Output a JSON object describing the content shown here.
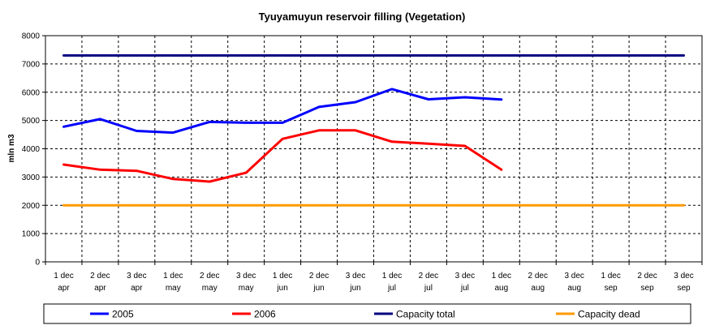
{
  "chart_data": {
    "type": "line",
    "title": "Tyuyamuyun reservoir filling (Vegetation)",
    "xlabel": "",
    "ylabel": "mln m3",
    "ylim": [
      0,
      8000
    ],
    "yticks": [
      0,
      1000,
      2000,
      3000,
      4000,
      5000,
      6000,
      7000,
      8000
    ],
    "grid": true,
    "legend_position": "bottom",
    "categories": [
      [
        "1 dec",
        "apr"
      ],
      [
        "2 dec",
        "apr"
      ],
      [
        "3 dec",
        "apr"
      ],
      [
        "1 dec",
        "may"
      ],
      [
        "2 dec",
        "may"
      ],
      [
        "3 dec",
        "may"
      ],
      [
        "1 dec",
        "jun"
      ],
      [
        "2 dec",
        "jun"
      ],
      [
        "3 dec",
        "jun"
      ],
      [
        "1 dec",
        "jul"
      ],
      [
        "2 dec",
        "jul"
      ],
      [
        "3 dec",
        "jul"
      ],
      [
        "1 dec",
        "aug"
      ],
      [
        "2 dec",
        "aug"
      ],
      [
        "3 dec",
        "aug"
      ],
      [
        "1 dec",
        "sep"
      ],
      [
        "2 dec",
        "sep"
      ],
      [
        "3 dec",
        "sep"
      ]
    ],
    "series": [
      {
        "name": "2005",
        "color": "#0000ff",
        "values": [
          4780,
          5050,
          4630,
          4570,
          4950,
          4920,
          4920,
          5480,
          5650,
          6110,
          5750,
          5820,
          5740,
          null,
          null,
          null,
          null,
          null
        ]
      },
      {
        "name": "2006",
        "color": "#ff0000",
        "values": [
          3440,
          3260,
          3220,
          2930,
          2840,
          3150,
          4350,
          4650,
          4650,
          4250,
          4180,
          4100,
          3260,
          null,
          null,
          null,
          null,
          null
        ]
      },
      {
        "name": "Capacity total",
        "color": "#000080",
        "values": [
          7300,
          7300,
          7300,
          7300,
          7300,
          7300,
          7300,
          7300,
          7300,
          7300,
          7300,
          7300,
          7300,
          7300,
          7300,
          7300,
          7300,
          7300
        ]
      },
      {
        "name": "Capacity dead",
        "color": "#ff9900",
        "values": [
          2000,
          2000,
          2000,
          2000,
          2000,
          2000,
          2000,
          2000,
          2000,
          2000,
          2000,
          2000,
          2000,
          2000,
          2000,
          2000,
          2000,
          2000
        ]
      }
    ]
  }
}
